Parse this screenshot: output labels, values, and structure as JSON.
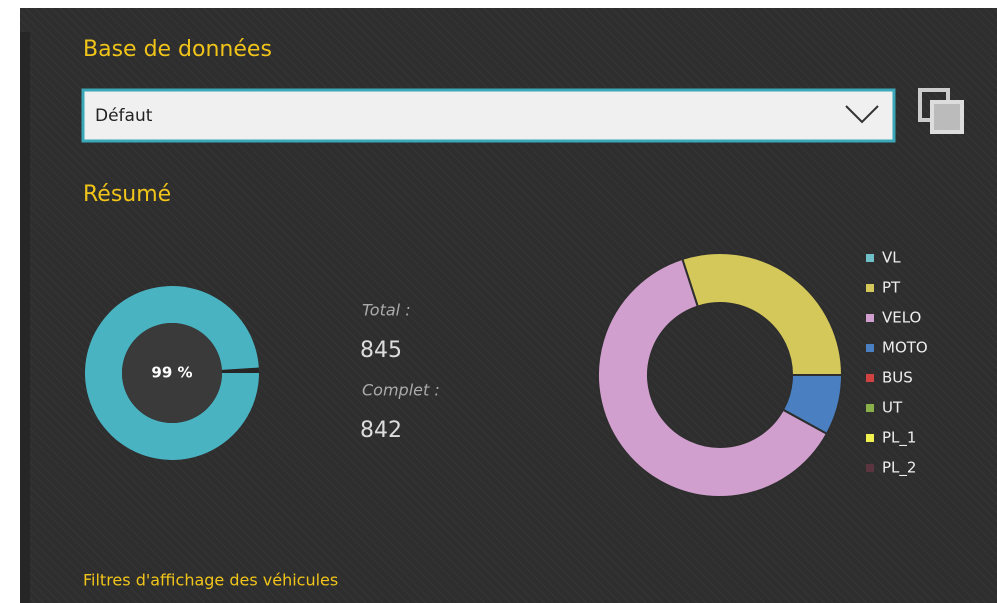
{
  "header": {
    "title": "Base de données"
  },
  "select": {
    "value": "Défaut"
  },
  "summary": {
    "title": "Résumé",
    "total_label": "Total :",
    "total": 845,
    "complete_label": "Complet :",
    "complete": 842
  },
  "chart_data": [
    {
      "type": "gauge",
      "values": [
        99
      ],
      "value_labels": [
        "99 %"
      ],
      "color": "#4ab3c2",
      "ylim": [
        0,
        100
      ]
    },
    {
      "type": "donut",
      "categories": [
        "VL",
        "PT",
        "VELO",
        "MOTO",
        "BUS",
        "UT",
        "PL_1",
        "PL_2"
      ],
      "values": [
        0,
        30,
        62,
        8,
        0,
        0,
        0,
        0
      ],
      "colors": [
        "#6fc0c9",
        "#d4c85a",
        "#d19fcd",
        "#4a7fc1",
        "#d34242",
        "#8ab04a",
        "#f0f050",
        "#5a3540"
      ]
    }
  ],
  "footer": {
    "text": "Filtres d'affichage des véhicules"
  }
}
